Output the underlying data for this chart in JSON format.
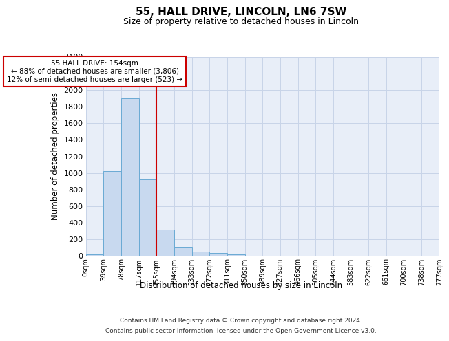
{
  "title1": "55, HALL DRIVE, LINCOLN, LN6 7SW",
  "title2": "Size of property relative to detached houses in Lincoln",
  "xlabel": "Distribution of detached houses by size in Lincoln",
  "ylabel": "Number of detached properties",
  "footer1": "Contains HM Land Registry data © Crown copyright and database right 2024.",
  "footer2": "Contains public sector information licensed under the Open Government Licence v3.0.",
  "bin_labels": [
    "0sqm",
    "39sqm",
    "78sqm",
    "117sqm",
    "155sqm",
    "194sqm",
    "233sqm",
    "272sqm",
    "311sqm",
    "350sqm",
    "389sqm",
    "427sqm",
    "466sqm",
    "505sqm",
    "544sqm",
    "583sqm",
    "622sqm",
    "661sqm",
    "700sqm",
    "738sqm",
    "777sqm"
  ],
  "bar_values": [
    20,
    1020,
    1900,
    920,
    320,
    110,
    55,
    35,
    20,
    5,
    0,
    0,
    0,
    0,
    0,
    0,
    0,
    0,
    0,
    0
  ],
  "bar_color": "#c8d9ef",
  "bar_edge_color": "#6aaad4",
  "property_line_bin": 4,
  "annotation_title": "55 HALL DRIVE: 154sqm",
  "annotation_line1": "← 88% of detached houses are smaller (3,806)",
  "annotation_line2": "12% of semi-detached houses are larger (523) →",
  "vline_color": "#cc0000",
  "annotation_box_edgecolor": "#cc0000",
  "ylim": [
    0,
    2400
  ],
  "yticks": [
    0,
    200,
    400,
    600,
    800,
    1000,
    1200,
    1400,
    1600,
    1800,
    2000,
    2200,
    2400
  ],
  "grid_color": "#c8d4e8",
  "bg_color": "#e8eef8"
}
